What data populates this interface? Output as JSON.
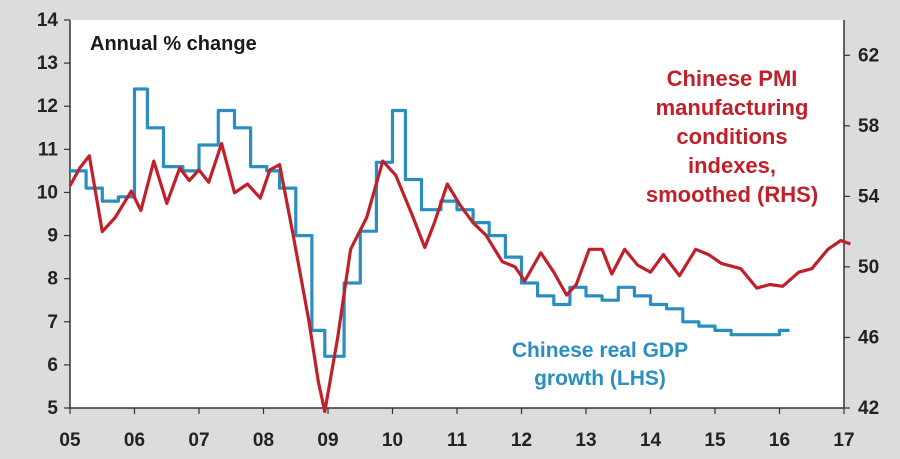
{
  "chart_data": {
    "type": "line",
    "annotation": "Annual % change",
    "left_axis": {
      "ticks": [
        "5",
        "6",
        "7",
        "8",
        "9",
        "10",
        "11",
        "12",
        "13",
        "14"
      ],
      "range": [
        5,
        14
      ]
    },
    "right_axis": {
      "ticks": [
        "42",
        "46",
        "50",
        "54",
        "58",
        "62"
      ],
      "range": [
        42,
        64
      ]
    },
    "x_axis": {
      "ticks": [
        "05",
        "06",
        "07",
        "08",
        "09",
        "10",
        "11",
        "12",
        "13",
        "14",
        "15",
        "16",
        "17"
      ],
      "range": [
        2005,
        2017
      ]
    },
    "series": [
      {
        "name_lines": [
          "Chinese real GDP",
          "growth (LHS)"
        ],
        "axis": "left",
        "color": "#2a8fc0",
        "step": true,
        "points": [
          [
            2005.0,
            10.5
          ],
          [
            2005.25,
            10.1
          ],
          [
            2005.5,
            9.8
          ],
          [
            2005.75,
            9.9
          ],
          [
            2006.0,
            12.4
          ],
          [
            2006.2,
            11.5
          ],
          [
            2006.45,
            10.6
          ],
          [
            2006.75,
            10.5
          ],
          [
            2007.0,
            11.1
          ],
          [
            2007.3,
            11.9
          ],
          [
            2007.55,
            11.5
          ],
          [
            2007.8,
            10.6
          ],
          [
            2008.05,
            10.5
          ],
          [
            2008.25,
            10.1
          ],
          [
            2008.5,
            9.0
          ],
          [
            2008.75,
            6.8
          ],
          [
            2008.95,
            6.2
          ],
          [
            2009.25,
            7.9
          ],
          [
            2009.5,
            9.1
          ],
          [
            2009.75,
            10.7
          ],
          [
            2010.0,
            11.9
          ],
          [
            2010.2,
            10.3
          ],
          [
            2010.45,
            9.6
          ],
          [
            2010.75,
            9.8
          ],
          [
            2011.0,
            9.6
          ],
          [
            2011.25,
            9.3
          ],
          [
            2011.5,
            9.0
          ],
          [
            2011.75,
            8.5
          ],
          [
            2012.0,
            7.9
          ],
          [
            2012.25,
            7.6
          ],
          [
            2012.5,
            7.4
          ],
          [
            2012.75,
            7.8
          ],
          [
            2013.0,
            7.6
          ],
          [
            2013.25,
            7.5
          ],
          [
            2013.5,
            7.8
          ],
          [
            2013.75,
            7.6
          ],
          [
            2014.0,
            7.4
          ],
          [
            2014.25,
            7.3
          ],
          [
            2014.5,
            7.0
          ],
          [
            2014.75,
            6.9
          ],
          [
            2015.0,
            6.8
          ],
          [
            2015.25,
            6.7
          ],
          [
            2015.5,
            6.7
          ],
          [
            2015.75,
            6.7
          ],
          [
            2016.0,
            6.8
          ]
        ]
      },
      {
        "name_lines": [
          "Chinese PMI",
          "manufacturing",
          "conditions",
          "indexes,",
          "smoothed (RHS)"
        ],
        "axis": "right",
        "color": "#c0202a",
        "step": false,
        "points": [
          [
            2005.0,
            54.6
          ],
          [
            2005.15,
            55.6
          ],
          [
            2005.3,
            56.3
          ],
          [
            2005.5,
            52.0
          ],
          [
            2005.7,
            52.8
          ],
          [
            2005.95,
            54.3
          ],
          [
            2006.1,
            53.2
          ],
          [
            2006.3,
            56.0
          ],
          [
            2006.5,
            53.6
          ],
          [
            2006.7,
            55.6
          ],
          [
            2006.85,
            54.9
          ],
          [
            2007.0,
            55.5
          ],
          [
            2007.15,
            54.8
          ],
          [
            2007.35,
            57.0
          ],
          [
            2007.55,
            54.2
          ],
          [
            2007.75,
            54.7
          ],
          [
            2007.95,
            53.9
          ],
          [
            2008.1,
            55.5
          ],
          [
            2008.25,
            55.8
          ],
          [
            2008.45,
            52.0
          ],
          [
            2008.7,
            47.0
          ],
          [
            2008.85,
            43.5
          ],
          [
            2008.95,
            41.8
          ],
          [
            2009.15,
            46.0
          ],
          [
            2009.35,
            51.0
          ],
          [
            2009.6,
            52.8
          ],
          [
            2009.85,
            56.0
          ],
          [
            2010.05,
            55.2
          ],
          [
            2010.3,
            53.0
          ],
          [
            2010.5,
            51.1
          ],
          [
            2010.65,
            52.5
          ],
          [
            2010.85,
            54.7
          ],
          [
            2011.05,
            53.5
          ],
          [
            2011.25,
            52.5
          ],
          [
            2011.45,
            51.8
          ],
          [
            2011.7,
            50.3
          ],
          [
            2011.9,
            50.0
          ],
          [
            2012.05,
            49.2
          ],
          [
            2012.3,
            50.8
          ],
          [
            2012.5,
            49.7
          ],
          [
            2012.7,
            48.4
          ],
          [
            2012.85,
            49.0
          ],
          [
            2013.05,
            51.0
          ],
          [
            2013.25,
            51.0
          ],
          [
            2013.4,
            49.6
          ],
          [
            2013.6,
            51.0
          ],
          [
            2013.8,
            50.1
          ],
          [
            2014.0,
            49.7
          ],
          [
            2014.2,
            50.7
          ],
          [
            2014.45,
            49.5
          ],
          [
            2014.7,
            51.0
          ],
          [
            2014.9,
            50.7
          ],
          [
            2015.1,
            50.2
          ],
          [
            2015.4,
            49.9
          ],
          [
            2015.65,
            48.8
          ],
          [
            2015.85,
            49.0
          ],
          [
            2016.05,
            48.9
          ],
          [
            2016.3,
            49.7
          ],
          [
            2016.5,
            49.9
          ],
          [
            2016.75,
            51.0
          ],
          [
            2016.95,
            51.5
          ],
          [
            2017.1,
            51.3
          ]
        ]
      }
    ]
  }
}
